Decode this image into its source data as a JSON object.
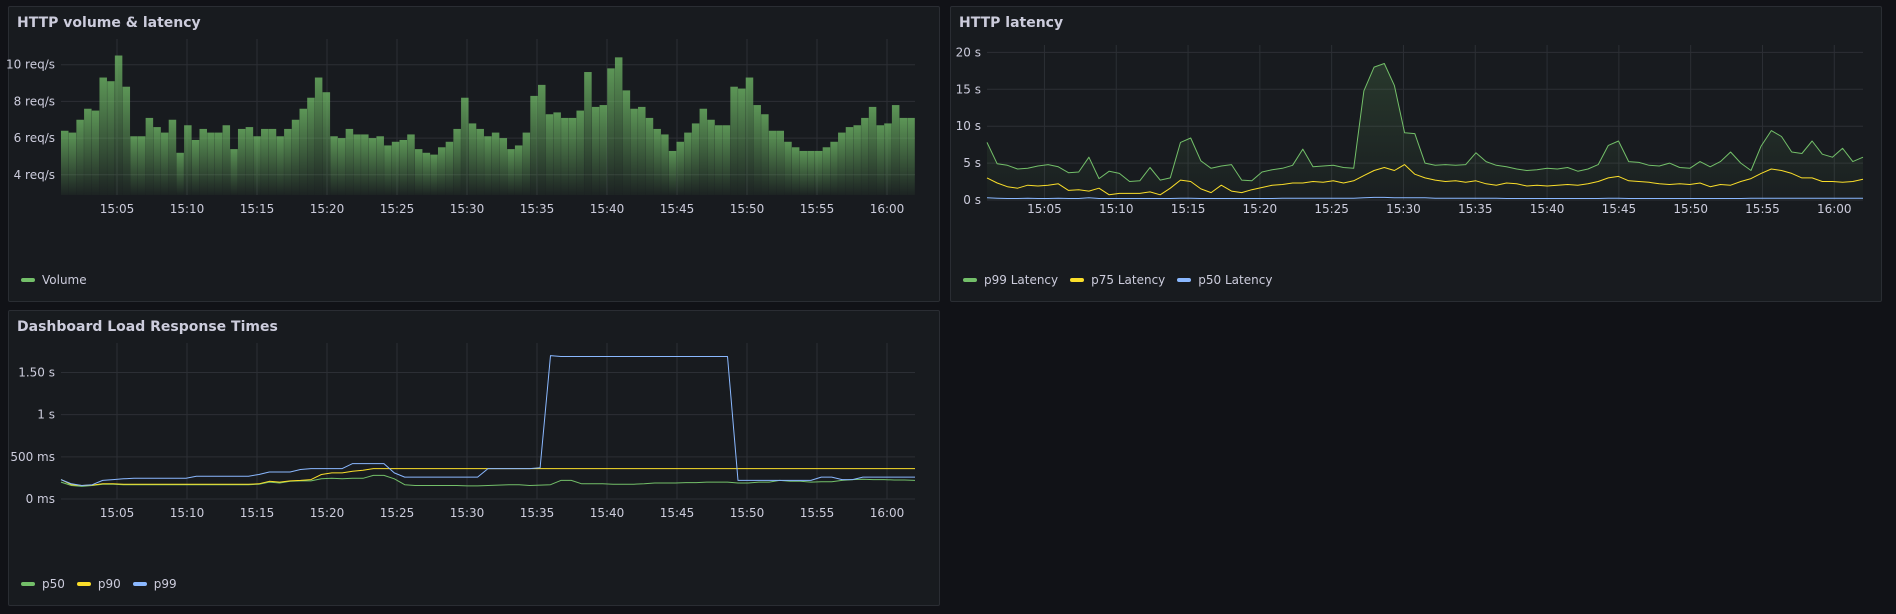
{
  "panels": {
    "volume": {
      "title": "HTTP volume & latency"
    },
    "latency": {
      "title": "HTTP latency"
    },
    "dashboard": {
      "title": "Dashboard Load Response Times"
    }
  },
  "chart_data": [
    {
      "type": "bar",
      "title": "HTTP volume & latency",
      "x_range": [
        "15:01",
        "16:02"
      ],
      "x_ticks": [
        "15:05",
        "15:10",
        "15:15",
        "15:20",
        "15:25",
        "15:30",
        "15:35",
        "15:40",
        "15:45",
        "15:50",
        "15:55",
        "16:00"
      ],
      "y_ticks": [
        "4 req/s",
        "6 req/s",
        "8 req/s",
        "10 req/s"
      ],
      "ylim": [
        2.9,
        11.4
      ],
      "unit": "req/s",
      "legend": "bottom-left",
      "grid": true,
      "series": [
        {
          "name": "Volume",
          "color": "#73bf69",
          "values": [
            6.4,
            6.3,
            7,
            7.6,
            7.5,
            9.3,
            9.1,
            10.5,
            8.8,
            6.1,
            6.1,
            7.1,
            6.6,
            6.3,
            7.0,
            5.2,
            6.7,
            5.9,
            6.5,
            6.3,
            6.3,
            6.7,
            5.4,
            6.5,
            6.6,
            6.1,
            6.5,
            6.5,
            6.1,
            6.5,
            7.0,
            7.6,
            8.2,
            9.3,
            8.5,
            6.1,
            6.0,
            6.5,
            6.2,
            6.2,
            6.0,
            6.1,
            5.6,
            5.8,
            5.9,
            6.2,
            5.4,
            5.2,
            5.1,
            5.5,
            5.8,
            6.5,
            8.2,
            6.8,
            6.5,
            6.1,
            6.3,
            6.0,
            5.4,
            5.6,
            6.3,
            8.3,
            8.9,
            7.3,
            7.4,
            7.1,
            7.1,
            7.5,
            9.6,
            7.7,
            7.8,
            9.8,
            10.4,
            8.6,
            7.6,
            7.7,
            7.1,
            6.5,
            6.2,
            5.3,
            5.8,
            6.3,
            6.8,
            7.6,
            7.0,
            6.7,
            6.7,
            8.8,
            8.7,
            9.3,
            7.8,
            7.3,
            6.4,
            6.4,
            5.8,
            5.5,
            5.3,
            5.3,
            5.3,
            5.5,
            5.8,
            6.3,
            6.6,
            6.7,
            7.1,
            7.7,
            6.7,
            6.8,
            7.8,
            7.1,
            7.1
          ]
        }
      ]
    },
    {
      "type": "line",
      "title": "HTTP latency",
      "x_range": [
        "15:01",
        "16:02"
      ],
      "x_ticks": [
        "15:05",
        "15:10",
        "15:15",
        "15:20",
        "15:25",
        "15:30",
        "15:35",
        "15:40",
        "15:45",
        "15:50",
        "15:55",
        "16:00"
      ],
      "y_ticks": [
        "0 s",
        "5 s",
        "10 s",
        "15 s",
        "20 s"
      ],
      "ylim": [
        0,
        21
      ],
      "unit": "s",
      "legend": "bottom-left",
      "grid": true,
      "series": [
        {
          "name": "p99 Latency",
          "color": "#73bf69",
          "values": [
            7.8,
            4.9,
            4.7,
            4.2,
            4.3,
            4.6,
            4.8,
            4.5,
            3.7,
            3.8,
            5.8,
            2.9,
            3.9,
            3.6,
            2.5,
            2.6,
            4.4,
            2.7,
            3.0,
            7.8,
            8.4,
            5.3,
            4.3,
            4.6,
            4.8,
            2.7,
            2.6,
            3.8,
            4.1,
            4.3,
            4.7,
            6.9,
            4.5,
            4.6,
            4.7,
            4.4,
            4.3,
            14.8,
            18.0,
            18.5,
            15.5,
            9.1,
            9.0,
            5.0,
            4.7,
            4.8,
            4.7,
            4.8,
            6.4,
            5.2,
            4.7,
            4.5,
            4.2,
            4.0,
            4.1,
            4.3,
            4.2,
            4.4,
            3.9,
            4.2,
            4.8,
            7.4,
            8.0,
            5.2,
            5.1,
            4.7,
            4.6,
            5.0,
            4.4,
            4.3,
            5.2,
            4.5,
            5.2,
            6.5,
            5.0,
            4.0,
            7.3,
            9.4,
            8.6,
            6.5,
            6.3,
            8.0,
            6.2,
            5.8,
            7.0,
            5.2,
            5.8
          ]
        },
        {
          "name": "p75 Latency",
          "color": "#fade2a",
          "values": [
            3.0,
            2.3,
            1.8,
            1.6,
            2.0,
            1.9,
            2.0,
            2.2,
            1.3,
            1.4,
            1.2,
            1.6,
            0.7,
            0.9,
            0.9,
            0.9,
            1.1,
            0.7,
            1.6,
            2.7,
            2.5,
            1.5,
            1.0,
            2.0,
            1.2,
            1.0,
            1.4,
            1.7,
            2.0,
            2.1,
            2.3,
            2.3,
            2.5,
            2.4,
            2.6,
            2.3,
            2.6,
            3.3,
            4.0,
            4.4,
            4.0,
            4.8,
            3.5,
            3.0,
            2.7,
            2.5,
            2.6,
            2.4,
            2.6,
            2.2,
            2.0,
            2.3,
            2.2,
            1.9,
            2.0,
            1.9,
            2.0,
            2.1,
            2.0,
            2.2,
            2.5,
            3.0,
            3.2,
            2.6,
            2.5,
            2.4,
            2.2,
            2.1,
            2.2,
            2.1,
            2.3,
            1.8,
            2.1,
            2.0,
            2.5,
            2.9,
            3.6,
            4.2,
            4.0,
            3.6,
            3.0,
            3.0,
            2.5,
            2.5,
            2.4,
            2.5,
            2.8
          ]
        },
        {
          "name": "p50 Latency",
          "color": "#8ab8ff",
          "values": [
            0.3,
            0.25,
            0.2,
            0.2,
            0.25,
            0.2,
            0.2,
            0.25,
            0.2,
            0.2,
            0.3,
            0.2,
            0.2,
            0.2,
            0.2,
            0.2,
            0.2,
            0.2,
            0.2,
            0.25,
            0.25,
            0.2,
            0.2,
            0.2,
            0.2,
            0.2,
            0.2,
            0.2,
            0.2,
            0.25,
            0.25,
            0.25,
            0.25,
            0.25,
            0.25,
            0.25,
            0.25,
            0.3,
            0.35,
            0.35,
            0.3,
            0.3,
            0.3,
            0.3,
            0.25,
            0.25,
            0.25,
            0.25,
            0.25,
            0.25,
            0.25,
            0.2,
            0.2,
            0.2,
            0.2,
            0.2,
            0.2,
            0.2,
            0.2,
            0.2,
            0.2,
            0.25,
            0.25,
            0.2,
            0.2,
            0.2,
            0.2,
            0.2,
            0.2,
            0.2,
            0.2,
            0.2,
            0.2,
            0.2,
            0.2,
            0.25,
            0.25,
            0.25,
            0.25,
            0.25,
            0.25,
            0.25,
            0.25,
            0.25,
            0.25,
            0.25,
            0.25
          ]
        }
      ]
    },
    {
      "type": "line",
      "title": "Dashboard Load Response Times",
      "x_range": [
        "15:01",
        "16:02"
      ],
      "x_ticks": [
        "15:05",
        "15:10",
        "15:15",
        "15:20",
        "15:25",
        "15:30",
        "15:35",
        "15:40",
        "15:45",
        "15:50",
        "15:55",
        "16:00"
      ],
      "y_ticks": [
        "0 ms",
        "500 ms",
        "1 s",
        "1.50 s"
      ],
      "ylim": [
        0,
        1850
      ],
      "unit": "ms",
      "legend": "bottom-left",
      "grid": true,
      "series": [
        {
          "name": "p50",
          "color": "#73bf69",
          "values": [
            200,
            160,
            150,
            160,
            175,
            175,
            170,
            170,
            170,
            170,
            170,
            170,
            170,
            170,
            170,
            170,
            170,
            170,
            170,
            175,
            200,
            190,
            210,
            215,
            215,
            240,
            245,
            240,
            245,
            245,
            280,
            280,
            240,
            170,
            160,
            160,
            160,
            160,
            160,
            155,
            155,
            160,
            165,
            170,
            170,
            160,
            165,
            170,
            220,
            220,
            180,
            180,
            180,
            175,
            175,
            175,
            180,
            190,
            190,
            190,
            195,
            195,
            200,
            200,
            200,
            190,
            190,
            200,
            200,
            220,
            210,
            210,
            200,
            205,
            205,
            220,
            230,
            235,
            230,
            230,
            225,
            225,
            220
          ]
        },
        {
          "name": "p90",
          "color": "#fade2a",
          "values": [
            230,
            170,
            160,
            165,
            180,
            180,
            175,
            175,
            175,
            175,
            175,
            175,
            175,
            175,
            175,
            175,
            175,
            175,
            175,
            180,
            210,
            200,
            215,
            220,
            230,
            290,
            310,
            310,
            330,
            340,
            360,
            360,
            360,
            360,
            360,
            360,
            360,
            360,
            360,
            360,
            360,
            360,
            360,
            360,
            360,
            360,
            360,
            360,
            360,
            360,
            360,
            360,
            360,
            360,
            360,
            360,
            360,
            360,
            360,
            360,
            360,
            360,
            360,
            360,
            360,
            360,
            360,
            360,
            360,
            360,
            360,
            360,
            360,
            360,
            360,
            360,
            360,
            360,
            360,
            360,
            360,
            360,
            360
          ]
        },
        {
          "name": "p99",
          "color": "#8ab8ff",
          "values": [
            230,
            180,
            160,
            170,
            220,
            230,
            240,
            245,
            245,
            245,
            245,
            245,
            245,
            270,
            270,
            270,
            270,
            270,
            270,
            290,
            320,
            320,
            320,
            350,
            360,
            360,
            360,
            360,
            420,
            420,
            420,
            420,
            310,
            260,
            260,
            260,
            260,
            260,
            260,
            260,
            260,
            360,
            360,
            360,
            360,
            360,
            370,
            1700,
            1690,
            1690,
            1690,
            1690,
            1690,
            1690,
            1690,
            1690,
            1690,
            1690,
            1690,
            1690,
            1690,
            1690,
            1690,
            1690,
            1690,
            220,
            220,
            220,
            220,
            220,
            220,
            220,
            220,
            260,
            260,
            230,
            230,
            260,
            260,
            260,
            260,
            260,
            260
          ]
        }
      ]
    }
  ]
}
